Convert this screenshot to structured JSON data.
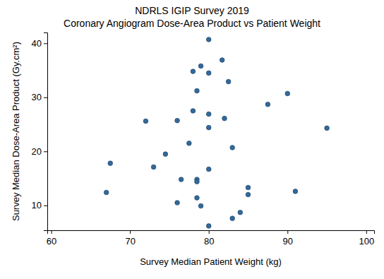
{
  "chart_data": {
    "type": "scatter",
    "title": "NDRLS IGIP Survey 2019",
    "subtitle": "Coronary Angiogram Dose-Area Product vs Patient Weight",
    "x_label": "Survey Median Patient Weight (kg)",
    "y_label": "Survey Median Dose-Area Product (Gy.cm²)",
    "color": "#33699a",
    "marker": "circle",
    "grid": false,
    "x": [
      80,
      81.7,
      79,
      78,
      80,
      82.5,
      78.5,
      90,
      87.5,
      78,
      80,
      82,
      72,
      76,
      80,
      95,
      77.5,
      83,
      74.5,
      67.5,
      73,
      80,
      76.5,
      78.5,
      78.5,
      85,
      67,
      85,
      91,
      78.5,
      76,
      79,
      84,
      83,
      80
    ],
    "values": [
      40.7,
      36.9,
      35.8,
      34.8,
      34.5,
      32.9,
      31.2,
      30.7,
      28.7,
      27.5,
      26.9,
      26.1,
      25.6,
      25.7,
      24.4,
      24.3,
      21.5,
      20.7,
      19.5,
      17.8,
      17.1,
      16.7,
      14.8,
      14.8,
      14.4,
      13.3,
      12.4,
      12.0,
      12.6,
      11.4,
      10.5,
      9.9,
      8.7,
      7.6,
      6.2
    ],
    "xlim": [
      59.5,
      101
    ],
    "xticks": [
      60,
      70,
      80,
      90,
      100
    ],
    "ylim": [
      5.4,
      42
    ],
    "yticks": [
      10,
      20,
      30,
      40
    ]
  }
}
